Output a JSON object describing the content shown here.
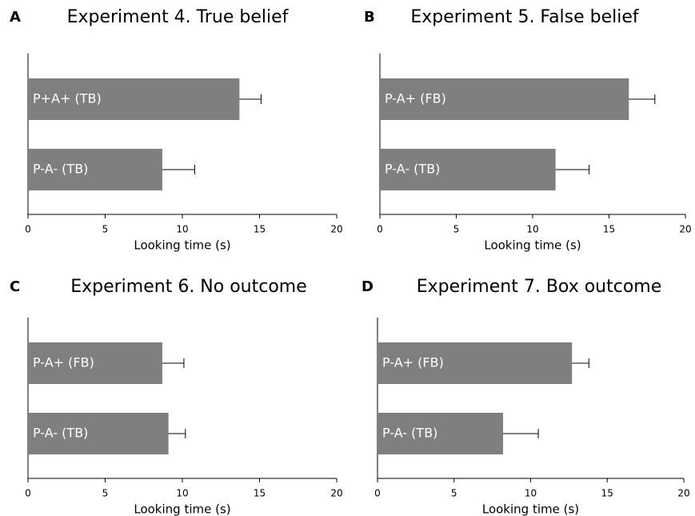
{
  "chart_data": [
    {
      "type": "bar",
      "orientation": "horizontal",
      "panel": "A",
      "title": "Experiment 4. True belief",
      "xlabel": "Looking time (s)",
      "categories": [
        "P+A+ (TB)",
        "P-A- (TB)"
      ],
      "values": [
        13.7,
        8.7
      ],
      "errors": [
        1.4,
        2.1
      ],
      "color": "#7f7f7f",
      "xlim": [
        0,
        20
      ],
      "xticks": [
        0,
        5,
        10,
        15,
        20
      ]
    },
    {
      "type": "bar",
      "orientation": "horizontal",
      "panel": "B",
      "title": "Experiment 5. False belief",
      "xlabel": "Looking time (s)",
      "categories": [
        "P-A+ (FB)",
        "P-A- (TB)"
      ],
      "values": [
        16.3,
        11.5
      ],
      "errors": [
        1.7,
        2.2
      ],
      "color": "#7f7f7f",
      "xlim": [
        0,
        20
      ],
      "xticks": [
        0,
        5,
        10,
        15,
        20
      ]
    },
    {
      "type": "bar",
      "orientation": "horizontal",
      "panel": "C",
      "title": "Experiment 6. No outcome",
      "xlabel": "Looking time (s)",
      "categories": [
        "P-A+ (FB)",
        "P-A- (TB)"
      ],
      "values": [
        8.7,
        9.1
      ],
      "errors": [
        1.4,
        1.1
      ],
      "color": "#7f7f7f",
      "xlim": [
        0,
        20
      ],
      "xticks": [
        0,
        5,
        10,
        15,
        20
      ]
    },
    {
      "type": "bar",
      "orientation": "horizontal",
      "panel": "D",
      "title": "Experiment 7. Box outcome",
      "xlabel": "Looking time (s)",
      "categories": [
        "P-A+ (FB)",
        "P-A- (TB)"
      ],
      "values": [
        12.7,
        8.2
      ],
      "errors": [
        1.1,
        2.3
      ],
      "color": "#7f7f7f",
      "xlim": [
        0,
        20
      ],
      "xticks": [
        0,
        5,
        10,
        15,
        20
      ]
    }
  ]
}
